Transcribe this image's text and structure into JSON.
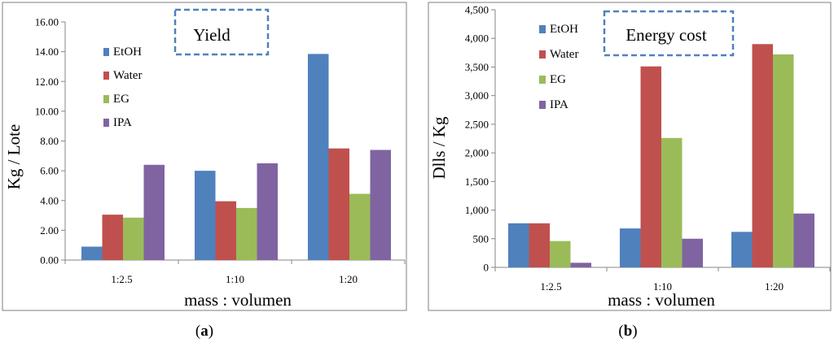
{
  "colors": {
    "EtOH": "#4F81BD",
    "Water": "#C0504D",
    "EG": "#9BBB59",
    "IPA": "#8064A2",
    "box": "#4F81BD",
    "frame": "#7F7F7F",
    "axis": "#858585"
  },
  "chart_data": [
    {
      "type": "bar",
      "title": "Yield",
      "xlabel": "mass : volumen",
      "ylabel": "Kg / Lote",
      "caption_letter": "a",
      "categories": [
        "1:2.5",
        "1:10",
        "1:20"
      ],
      "ylim": [
        0,
        16
      ],
      "yticks": [
        "0.00",
        "2.00",
        "4.00",
        "6.00",
        "8.00",
        "10.00",
        "12.00",
        "14.00",
        "16.00"
      ],
      "series": [
        {
          "name": "EtOH",
          "values": [
            0.9,
            6.0,
            13.85
          ]
        },
        {
          "name": "Water",
          "values": [
            3.05,
            3.95,
            7.5
          ]
        },
        {
          "name": "EG",
          "values": [
            2.85,
            3.5,
            4.45
          ]
        },
        {
          "name": "IPA",
          "values": [
            6.4,
            6.5,
            7.4
          ]
        }
      ]
    },
    {
      "type": "bar",
      "title": "Energy cost",
      "xlabel": "mass : volumen",
      "ylabel": "Dlls / Kg",
      "caption_letter": "b",
      "categories": [
        "1:2.5",
        "1:10",
        "1:20"
      ],
      "ylim": [
        0,
        4500
      ],
      "yticks": [
        "0",
        "500",
        "1,000",
        "1,500",
        "2,000",
        "2,500",
        "3,000",
        "3,500",
        "4,000",
        "4,500"
      ],
      "series": [
        {
          "name": "EtOH",
          "values": [
            770,
            680,
            620
          ]
        },
        {
          "name": "Water",
          "values": [
            770,
            3510,
            3900
          ]
        },
        {
          "name": "EG",
          "values": [
            460,
            2260,
            3720
          ]
        },
        {
          "name": "IPA",
          "values": [
            80,
            500,
            940
          ]
        }
      ]
    }
  ]
}
